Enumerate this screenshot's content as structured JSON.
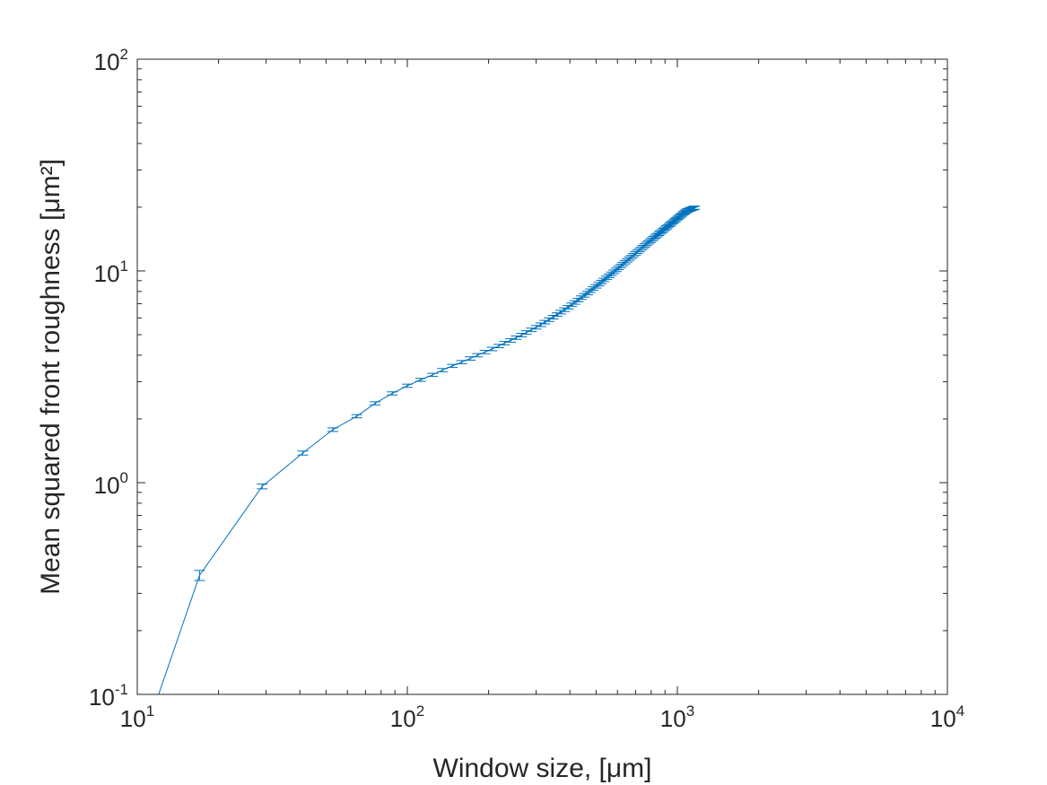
{
  "chart_data": {
    "type": "line",
    "title": "",
    "xlabel": "Window size, [μm]",
    "ylabel": "Mean squared front roughness [μm²]",
    "xscale": "log",
    "yscale": "log",
    "xlim": [
      10,
      10000
    ],
    "ylim": [
      0.1,
      100
    ],
    "grid": false,
    "legend": "none",
    "colors": {
      "series": "#0072BD",
      "axes": "#262626"
    },
    "x_ticks": [
      {
        "base": "10",
        "exp": "1"
      },
      {
        "base": "10",
        "exp": "2"
      },
      {
        "base": "10",
        "exp": "3"
      },
      {
        "base": "10",
        "exp": "4"
      }
    ],
    "y_ticks": [
      {
        "base": "10",
        "exp": "-1"
      },
      {
        "base": "10",
        "exp": "0"
      },
      {
        "base": "10",
        "exp": "1"
      },
      {
        "base": "10",
        "exp": "2"
      }
    ],
    "series": [
      {
        "x": [
          12,
          17,
          29,
          41,
          53,
          65,
          76,
          88,
          100,
          112,
          124,
          135,
          147,
          159,
          171,
          182,
          194,
          206,
          218,
          229,
          241,
          253,
          265,
          276,
          288,
          300,
          312,
          323,
          335,
          347,
          359,
          370,
          382,
          394,
          406,
          417,
          429,
          441,
          453,
          465,
          476,
          488,
          500,
          512,
          523,
          535,
          547,
          559,
          570,
          582,
          594,
          606,
          617,
          629,
          641,
          653,
          664,
          676,
          688,
          700,
          711,
          723,
          735,
          747,
          758,
          770,
          782,
          794,
          805,
          817,
          829,
          841,
          853,
          864,
          876,
          888,
          900,
          911,
          923,
          935,
          947,
          958,
          970,
          982,
          994,
          1005,
          1017,
          1029,
          1041,
          1052,
          1064,
          1076,
          1088,
          1099,
          1111,
          1123,
          1135,
          1146,
          1158
        ],
        "y": [
          0.1,
          0.365,
          0.96,
          1.38,
          1.78,
          2.06,
          2.37,
          2.64,
          2.87,
          3.06,
          3.23,
          3.4,
          3.56,
          3.71,
          3.86,
          4.0,
          4.14,
          4.28,
          4.42,
          4.56,
          4.7,
          4.84,
          4.98,
          5.12,
          5.27,
          5.42,
          5.57,
          5.73,
          5.89,
          6.05,
          6.22,
          6.39,
          6.56,
          6.74,
          6.92,
          7.1,
          7.29,
          7.48,
          7.67,
          7.86,
          8.06,
          8.26,
          8.46,
          8.66,
          8.86,
          9.07,
          9.28,
          9.49,
          9.7,
          9.91,
          10.12,
          10.34,
          10.56,
          10.78,
          11.0,
          11.22,
          11.44,
          11.66,
          11.88,
          12.1,
          12.32,
          12.54,
          12.76,
          12.98,
          13.2,
          13.42,
          13.64,
          13.86,
          14.08,
          14.3,
          14.52,
          14.74,
          14.96,
          15.18,
          15.4,
          15.62,
          15.84,
          16.06,
          16.28,
          16.5,
          16.72,
          16.94,
          17.16,
          17.38,
          17.6,
          17.82,
          18.04,
          18.26,
          18.48,
          18.7,
          18.9,
          19.1,
          19.3,
          19.4,
          19.5,
          19.6,
          19.7,
          19.8,
          19.9
        ],
        "y_err": [
          0,
          0.02,
          0.025,
          0.03,
          0.035,
          0.035,
          0.04,
          0.045,
          0.05,
          0.05,
          0.055,
          0.06,
          0.06,
          0.065,
          0.07,
          0.07,
          0.075,
          0.08,
          0.08,
          0.085,
          0.09,
          0.09,
          0.095,
          0.1,
          0.1,
          0.105,
          0.11,
          0.11,
          0.115,
          0.12,
          0.12,
          0.125,
          0.13,
          0.13,
          0.135,
          0.14,
          0.14,
          0.145,
          0.15,
          0.15,
          0.155,
          0.16,
          0.16,
          0.165,
          0.17,
          0.17,
          0.175,
          0.18,
          0.18,
          0.185,
          0.19,
          0.19,
          0.195,
          0.2,
          0.2,
          0.205,
          0.21,
          0.21,
          0.215,
          0.22,
          0.22,
          0.225,
          0.23,
          0.23,
          0.235,
          0.24,
          0.24,
          0.245,
          0.25,
          0.25,
          0.255,
          0.26,
          0.26,
          0.265,
          0.27,
          0.27,
          0.275,
          0.28,
          0.28,
          0.285,
          0.29,
          0.29,
          0.295,
          0.3,
          0.3,
          0.305,
          0.31,
          0.31,
          0.315,
          0.32,
          0.32,
          0.325,
          0.33,
          0.33,
          0.335,
          0.34,
          0.34,
          0.345,
          0.35
        ]
      }
    ]
  }
}
